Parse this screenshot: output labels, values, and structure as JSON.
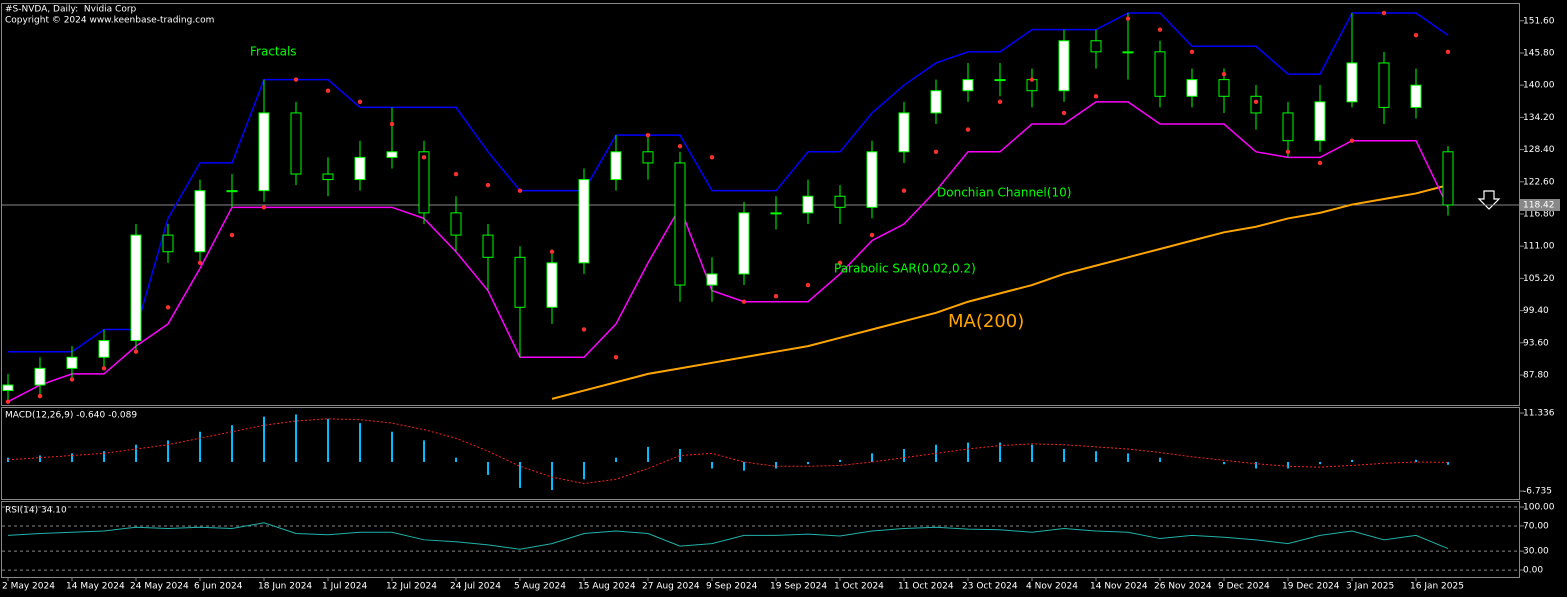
{
  "chart_data": [
    {
      "type": "candlestick",
      "title": "#S-NVDA, Daily:  Nvidia Corp",
      "subtitle": "Copyright © 2024 www.keenbase-trading.com",
      "categories": [
        "2 May 2024",
        null,
        "14 May 2024",
        null,
        "24 May 2024",
        null,
        "6 Jun 2024",
        null,
        "18 Jun 2024",
        null,
        "1 Jul 2024",
        null,
        "12 Jul 2024",
        null,
        "24 Jul 2024",
        null,
        "5 Aug 2024",
        null,
        "15 Aug 2024",
        null,
        "27 Aug 2024",
        null,
        "9 Sep 2024",
        null,
        "19 Sep 2024",
        null,
        "1 Oct 2024",
        null,
        "11 Oct 2024",
        null,
        "23 Oct 2024",
        null,
        "4 Nov 2024",
        null,
        "14 Nov 2024",
        null,
        "26 Nov 2024",
        null,
        "9 Dec 2024",
        null,
        "19 Dec 2024",
        null,
        "3 Jan 2025",
        null,
        "16 Jan 2025",
        null
      ],
      "open": [
        85,
        86,
        89,
        91,
        94,
        113,
        110,
        121,
        121,
        135,
        124,
        123,
        127,
        128,
        117,
        113,
        109,
        100,
        108,
        123,
        128,
        126,
        104,
        106,
        117,
        117,
        120,
        118,
        128,
        135,
        139,
        141,
        141,
        139,
        148,
        146,
        146,
        138,
        141,
        138,
        135,
        130,
        137,
        144,
        136,
        128
      ],
      "high": [
        88,
        91,
        93,
        96,
        115,
        115,
        123,
        124,
        141,
        137,
        127,
        130,
        136,
        130,
        120,
        115,
        111,
        110,
        125,
        131,
        131,
        128,
        109,
        119,
        120,
        123,
        122,
        130,
        137,
        141,
        144,
        144,
        143,
        150,
        150,
        153,
        148,
        143,
        143,
        140,
        137,
        140,
        153,
        146,
        143,
        129
      ],
      "low": [
        83,
        84,
        87,
        89,
        92,
        108,
        108,
        118,
        119,
        122,
        120,
        121,
        125,
        115,
        110,
        103,
        91,
        97,
        106,
        121,
        123,
        101,
        101,
        104,
        114,
        115,
        115,
        116,
        126,
        133,
        137,
        138,
        136,
        137,
        143,
        141,
        136,
        136,
        135,
        132,
        127,
        128,
        136,
        133,
        134,
        116.5
      ],
      "close": [
        86,
        89,
        91,
        94,
        113,
        110,
        121,
        121,
        135,
        124,
        123,
        127,
        128,
        117,
        113,
        109,
        100,
        108,
        123,
        128,
        126,
        104,
        106,
        117,
        117,
        120,
        118,
        128,
        135,
        139,
        141,
        141,
        139,
        148,
        146,
        146,
        138,
        141,
        138,
        135,
        130,
        137,
        144,
        136,
        140,
        118.42
      ],
      "up_color": "#ffffff",
      "down_color": "#000000",
      "outline_color": "#00ff00",
      "donchian_upper": {
        "color": "#0000ff",
        "values": [
          92,
          92,
          92,
          96,
          96,
          116,
          126,
          126,
          141,
          141,
          141,
          136,
          136,
          136,
          136,
          128,
          121,
          121,
          121,
          131,
          131,
          131,
          121,
          121,
          121,
          128,
          128,
          135,
          140,
          144,
          146,
          146,
          150,
          150,
          150,
          153,
          153,
          147,
          147,
          147,
          142,
          142,
          153,
          153,
          153,
          149
        ]
      },
      "donchian_lower": {
        "color": "#ff00ff",
        "values": [
          83,
          86,
          88,
          88,
          93,
          97,
          107,
          118,
          118,
          118,
          118,
          118,
          118,
          116,
          110,
          103,
          91,
          91,
          91,
          97,
          108,
          118,
          103,
          101,
          101,
          101,
          106,
          112,
          115,
          121,
          128,
          128,
          133,
          133,
          137,
          137,
          133,
          133,
          133,
          128,
          127,
          127,
          130,
          130,
          130,
          118
        ]
      },
      "sar": {
        "color": "#ff3030",
        "values": [
          83,
          84,
          87,
          89,
          92,
          100,
          108,
          113,
          118,
          141,
          139,
          137,
          133,
          127,
          124,
          122,
          121,
          110,
          96,
          91,
          131,
          129,
          127,
          101,
          102,
          104,
          108,
          113,
          121,
          128,
          132,
          137,
          141,
          135,
          138,
          152,
          150,
          146,
          142,
          137,
          128,
          126,
          130,
          153,
          149,
          146
        ]
      },
      "ma": {
        "color": "#ffa500",
        "values": [
          null,
          null,
          null,
          null,
          null,
          null,
          null,
          null,
          null,
          null,
          null,
          null,
          null,
          null,
          null,
          null,
          null,
          83.5,
          85,
          86.5,
          88,
          89,
          90,
          91,
          92,
          93,
          94.5,
          96,
          97.5,
          99,
          101,
          102.5,
          104,
          106,
          107.5,
          109,
          110.5,
          112,
          113.5,
          114.5,
          116,
          117,
          118.5,
          119.5,
          120.5,
          122
        ]
      },
      "annotations": [
        "Fractals",
        "Donchian Channel(10)",
        "Parabolic SAR(0.02,0.2)",
        "MA(200)"
      ],
      "last_price": 118.42,
      "ylim": [
        82.4,
        154.8
      ],
      "yticks": [
        {
          "value": 151.6,
          "label": "151.60"
        },
        {
          "value": 145.8,
          "label": "145.80"
        },
        {
          "value": 140,
          "label": "140.00"
        },
        {
          "value": 134.2,
          "label": "134.20"
        },
        {
          "value": 128.4,
          "label": "128.40"
        },
        {
          "value": 122.6,
          "label": "122.60"
        },
        {
          "value": 116.8,
          "label": "116.80"
        },
        {
          "value": 111,
          "label": "111.00"
        },
        {
          "value": 105.2,
          "label": "105.20"
        },
        {
          "value": 99.4,
          "label": "99.40"
        },
        {
          "value": 93.6,
          "label": "93.60"
        },
        {
          "value": 87.8,
          "label": "87.80"
        }
      ]
    },
    {
      "type": "macd",
      "title": "MACD(12,26,9) -0.640 -0.089",
      "histogram": {
        "color": "#00bfff",
        "values": [
          1,
          1.5,
          2,
          2.5,
          4,
          5,
          7,
          8.5,
          10.5,
          11,
          10,
          9,
          7,
          5,
          1,
          -3,
          -6,
          -6.5,
          -4,
          1,
          3.5,
          3,
          -1.5,
          -2,
          -1.5,
          -0.5,
          0.5,
          2,
          3,
          4,
          4.5,
          4.5,
          4,
          3,
          2.5,
          2,
          1,
          0,
          -0.5,
          -1.5,
          -1.5,
          -0.5,
          0.5,
          0,
          0.5,
          -0.64
        ]
      },
      "signal": {
        "color": "#ff2020",
        "values": [
          0.5,
          1,
          1.5,
          2,
          3,
          4,
          5.5,
          7,
          8.5,
          9.5,
          10,
          9.8,
          9,
          7.5,
          5.5,
          2.5,
          -1,
          -3.5,
          -5,
          -4,
          -1.5,
          1.5,
          2,
          0,
          -1,
          -1,
          -0.8,
          0,
          1,
          2,
          3,
          3.8,
          4.2,
          4,
          3.5,
          3,
          2.2,
          1.2,
          0.4,
          -0.4,
          -1,
          -1.2,
          -0.8,
          -0.3,
          0,
          -0.089
        ]
      },
      "ylim": [
        -8.8,
        12.5
      ],
      "yticks": [
        11.336,
        -6.735
      ]
    },
    {
      "type": "rsi",
      "title": "RSI(14) 34.10",
      "color": "#20b2aa",
      "values": [
        55,
        58,
        60,
        62,
        68,
        66,
        68,
        66,
        75,
        58,
        56,
        60,
        60,
        48,
        45,
        40,
        33,
        42,
        58,
        62,
        58,
        38,
        42,
        55,
        55,
        57,
        54,
        62,
        66,
        68,
        65,
        64,
        60,
        66,
        62,
        60,
        50,
        55,
        52,
        48,
        42,
        55,
        62,
        48,
        55,
        34.1
      ],
      "ylim": [
        -11,
        108
      ],
      "yticks": [
        {
          "value": 100,
          "label": "100.00"
        },
        {
          "value": 70,
          "label": "70.00"
        },
        {
          "value": 30,
          "label": "30.00"
        },
        {
          "value": 0,
          "label": "0.00"
        }
      ]
    }
  ]
}
